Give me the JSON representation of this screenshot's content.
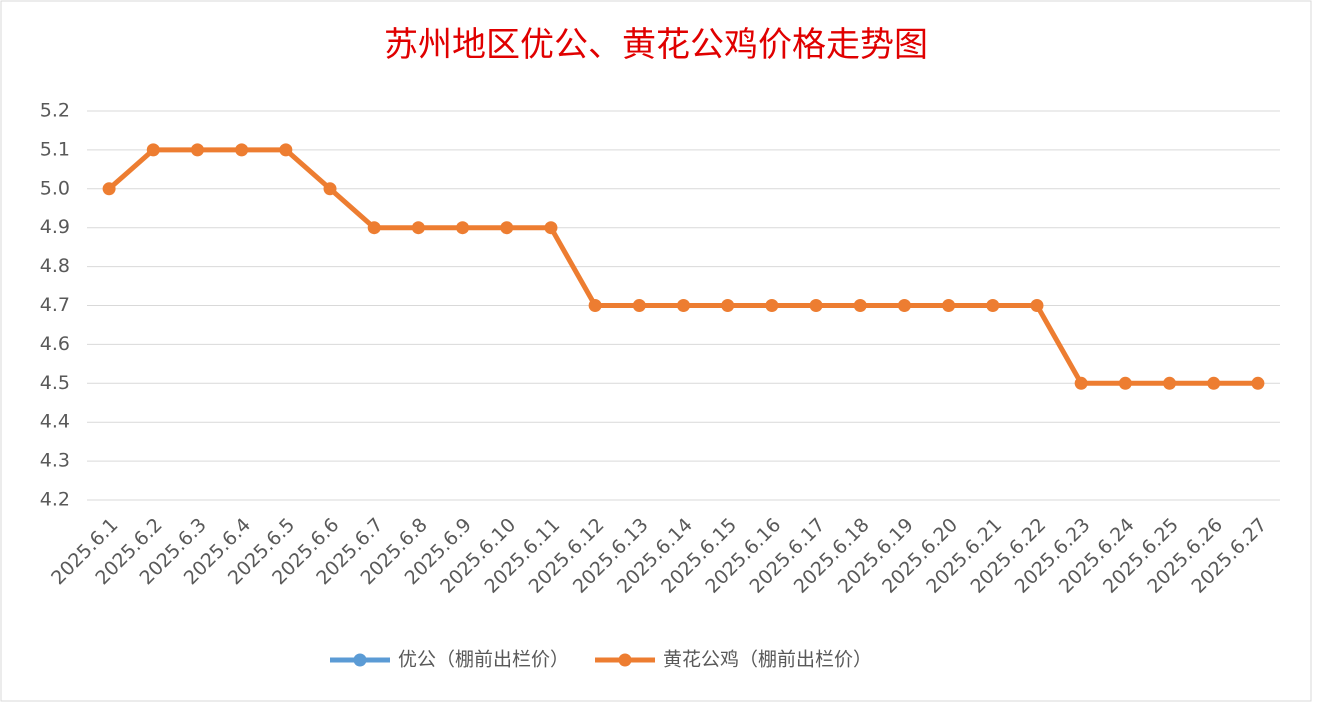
{
  "chart_data": {
    "type": "line",
    "title": "苏州地区优公、黄花公鸡价格走势图",
    "categories": [
      "2025.6.1",
      "2025.6.2",
      "2025.6.3",
      "2025.6.4",
      "2025.6.5",
      "2025.6.6",
      "2025.6.7",
      "2025.6.8",
      "2025.6.9",
      "2025.6.10",
      "2025.6.11",
      "2025.6.12",
      "2025.6.13",
      "2025.6.14",
      "2025.6.15",
      "2025.6.16",
      "2025.6.17",
      "2025.6.18",
      "2025.6.19",
      "2025.6.20",
      "2025.6.21",
      "2025.6.22",
      "2025.6.23",
      "2025.6.24",
      "2025.6.25",
      "2025.6.26",
      "2025.6.27"
    ],
    "series": [
      {
        "name": "优公（棚前出栏价）",
        "color": "#5b9bd5",
        "values": [
          null,
          null,
          null,
          null,
          null,
          null,
          null,
          null,
          null,
          null,
          null,
          null,
          null,
          null,
          null,
          null,
          null,
          null,
          null,
          null,
          null,
          null,
          null,
          null,
          null,
          null,
          null
        ]
      },
      {
        "name": "黄花公鸡（棚前出栏价）",
        "color": "#ed7d31",
        "values": [
          5.0,
          5.1,
          5.1,
          5.1,
          5.1,
          5.0,
          4.9,
          4.9,
          4.9,
          4.9,
          4.9,
          4.7,
          4.7,
          4.7,
          4.7,
          4.7,
          4.7,
          4.7,
          4.7,
          4.7,
          4.7,
          4.7,
          4.5,
          4.5,
          4.5,
          4.5,
          4.5
        ]
      }
    ],
    "ylim": [
      4.2,
      5.2
    ],
    "yticks": [
      4.2,
      4.3,
      4.4,
      4.5,
      4.6,
      4.7,
      4.8,
      4.9,
      {
        "value": 5,
        "label": "5.0"
      },
      5.1,
      5.2
    ],
    "grid": true
  }
}
